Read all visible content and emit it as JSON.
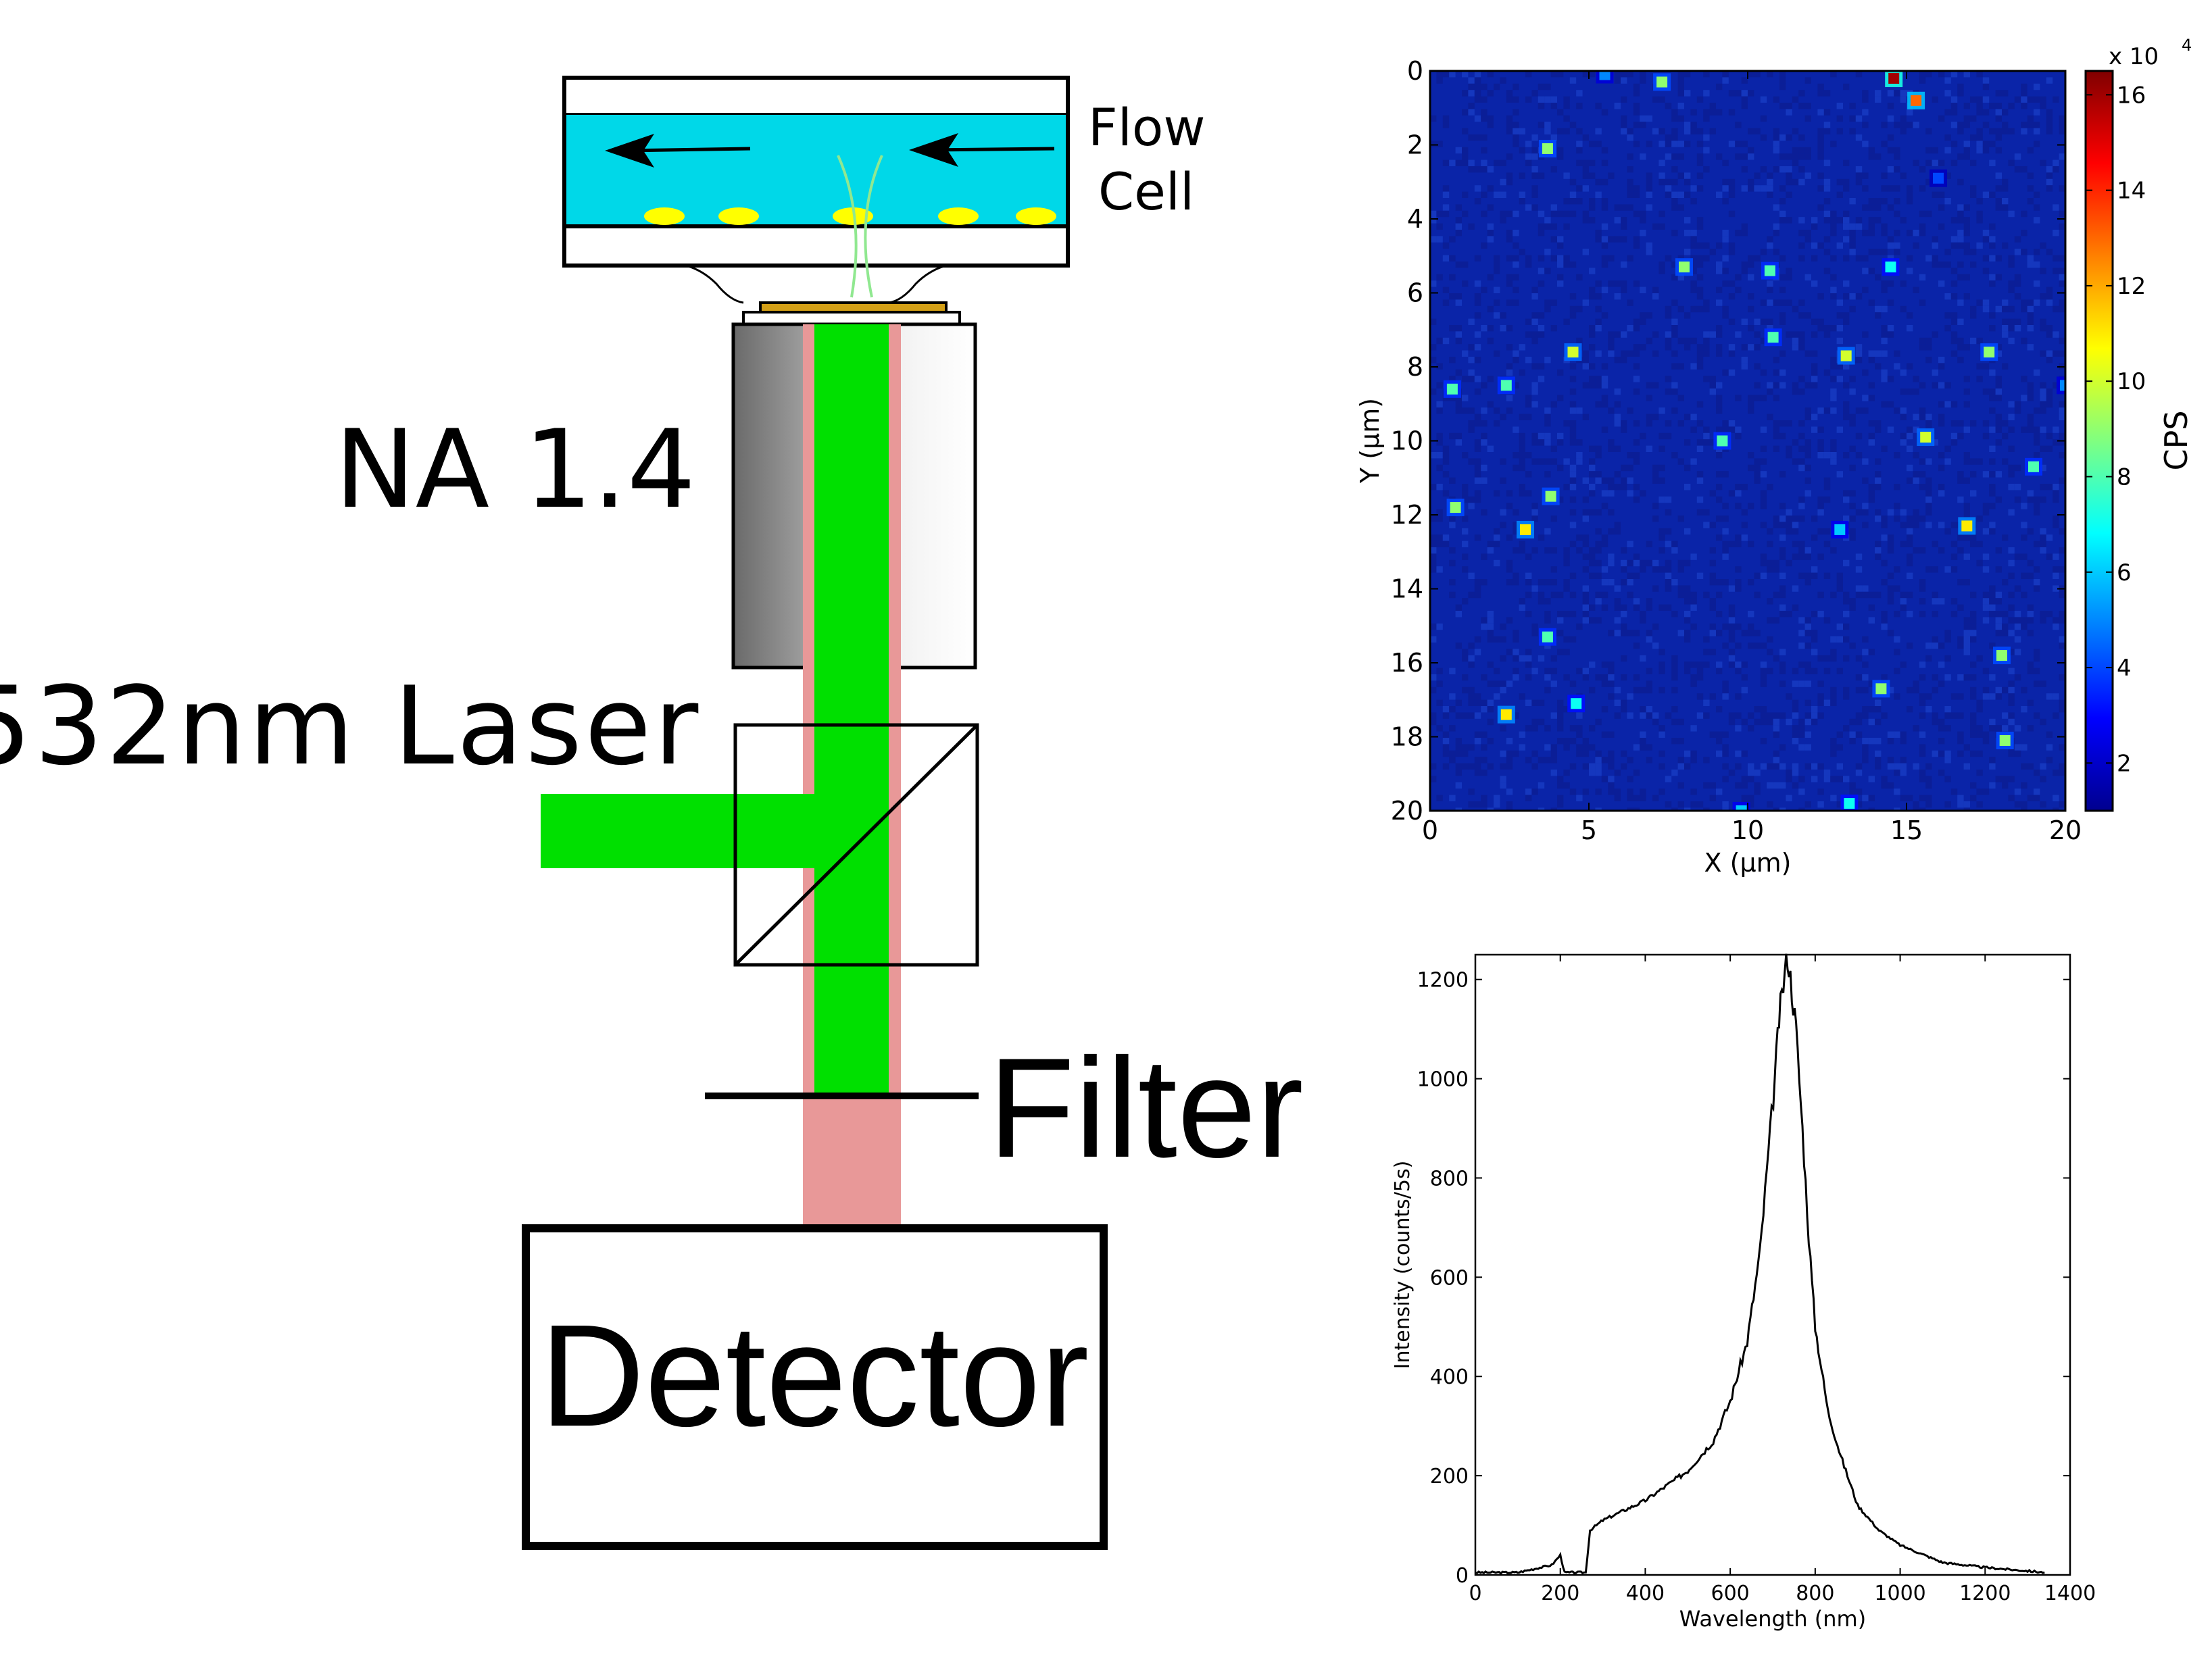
{
  "diagram": {
    "labels": {
      "flow_cell_line1": "Flow",
      "flow_cell_line2": "Cell",
      "na": "NA 1.4",
      "laser": "532nm Laser",
      "filter": "Filter",
      "detector": "Detector"
    },
    "colors": {
      "flow_fluid": "#00d8e8",
      "particles": "#ffff00",
      "laser_beam": "#00e000",
      "emission_beam": "#e89898",
      "coverslip": "#d4a017",
      "objective_dark": "#707070"
    }
  },
  "chart_data": [
    {
      "type": "heatmap",
      "title": "",
      "xlabel": "X (µm)",
      "ylabel": "Y (µm)",
      "xlim": [
        0,
        20
      ],
      "ylim": [
        0,
        20
      ],
      "y_reversed": true,
      "xticks": [
        "0",
        "5",
        "10",
        "15",
        "20"
      ],
      "yticks": [
        "0",
        "2",
        "4",
        "6",
        "8",
        "10",
        "12",
        "14",
        "16",
        "18",
        "20"
      ],
      "background_color": "#0a24a8",
      "colorbar": {
        "label": "CPS",
        "multiplier": "x 10",
        "exponent": "4",
        "ticks": [
          "2",
          "4",
          "6",
          "8",
          "10",
          "12",
          "14",
          "16"
        ],
        "range": [
          1,
          16.5
        ],
        "colors": [
          "#00008f",
          "#0000ff",
          "#0080ff",
          "#00ffff",
          "#80ff80",
          "#ffff00",
          "#ff8000",
          "#ff0000",
          "#800000"
        ]
      },
      "spots": [
        {
          "x": 5.5,
          "y": 0.1,
          "v": 5
        },
        {
          "x": 7.3,
          "y": 0.3,
          "v": 9
        },
        {
          "x": 14.6,
          "y": 0.2,
          "v": 16
        },
        {
          "x": 15.3,
          "y": 0.8,
          "v": 13
        },
        {
          "x": 3.7,
          "y": 2.1,
          "v": 9
        },
        {
          "x": 16.0,
          "y": 2.9,
          "v": 4
        },
        {
          "x": 8.0,
          "y": 5.3,
          "v": 9
        },
        {
          "x": 10.7,
          "y": 5.4,
          "v": 8
        },
        {
          "x": 14.5,
          "y": 5.3,
          "v": 7
        },
        {
          "x": 4.5,
          "y": 7.6,
          "v": 10
        },
        {
          "x": 10.8,
          "y": 7.2,
          "v": 8
        },
        {
          "x": 13.1,
          "y": 7.7,
          "v": 10
        },
        {
          "x": 17.6,
          "y": 7.6,
          "v": 9
        },
        {
          "x": 0.7,
          "y": 8.6,
          "v": 8
        },
        {
          "x": 2.4,
          "y": 8.5,
          "v": 8
        },
        {
          "x": 20.0,
          "y": 8.5,
          "v": 5
        },
        {
          "x": 9.2,
          "y": 10.0,
          "v": 8
        },
        {
          "x": 15.6,
          "y": 9.9,
          "v": 10
        },
        {
          "x": 19.0,
          "y": 10.7,
          "v": 8
        },
        {
          "x": 0.8,
          "y": 11.8,
          "v": 9
        },
        {
          "x": 3.8,
          "y": 11.5,
          "v": 9
        },
        {
          "x": 3.0,
          "y": 12.4,
          "v": 11
        },
        {
          "x": 12.9,
          "y": 12.4,
          "v": 6
        },
        {
          "x": 16.9,
          "y": 12.3,
          "v": 11
        },
        {
          "x": 3.7,
          "y": 15.3,
          "v": 8
        },
        {
          "x": 18.0,
          "y": 15.8,
          "v": 9
        },
        {
          "x": 14.2,
          "y": 16.7,
          "v": 9
        },
        {
          "x": 4.6,
          "y": 17.1,
          "v": 7
        },
        {
          "x": 2.4,
          "y": 17.4,
          "v": 11
        },
        {
          "x": 18.1,
          "y": 18.1,
          "v": 9
        },
        {
          "x": 13.2,
          "y": 19.8,
          "v": 7
        },
        {
          "x": 9.8,
          "y": 20.0,
          "v": 6
        }
      ]
    },
    {
      "type": "line",
      "title": "",
      "xlabel": "Wavelength (nm)",
      "ylabel": "Intensity (counts/5s)",
      "xlim": [
        0,
        1400
      ],
      "ylim": [
        0,
        1250
      ],
      "xticks": [
        "0",
        "200",
        "400",
        "600",
        "800",
        "1000",
        "1200",
        "1400"
      ],
      "yticks": [
        "0",
        "200",
        "400",
        "600",
        "800",
        "1000",
        "1200"
      ],
      "series": [
        {
          "x": [
            0,
            100,
            180,
            200,
            210,
            260,
            270,
            300,
            400,
            500,
            560,
            600,
            640,
            670,
            690,
            705,
            715,
            725,
            735,
            745,
            755,
            770,
            785,
            800,
            830,
            860,
            900,
            950,
            1000,
            1100,
            1200,
            1300,
            1340
          ],
          "y": [
            5,
            5,
            20,
            40,
            5,
            5,
            90,
            110,
            150,
            210,
            270,
            350,
            470,
            650,
            850,
            1000,
            1120,
            1190,
            1250,
            1180,
            1100,
            900,
            680,
            500,
            330,
            240,
            140,
            90,
            60,
            25,
            15,
            8,
            5
          ]
        }
      ]
    }
  ]
}
